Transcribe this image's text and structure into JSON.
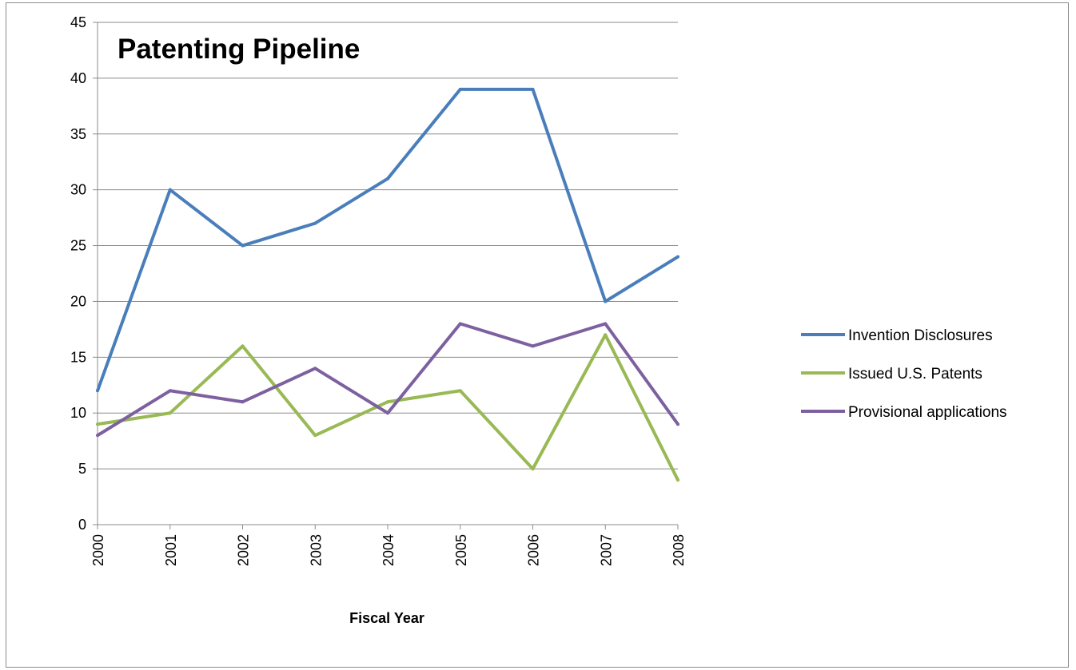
{
  "chart_data": {
    "type": "line",
    "title": "Patenting Pipeline",
    "xlabel": "Fiscal Year",
    "ylabel": "",
    "categories": [
      "2000",
      "2001",
      "2002",
      "2003",
      "2004",
      "2005",
      "2006",
      "2007",
      "2008"
    ],
    "ylim": [
      0,
      45
    ],
    "yticks": [
      0,
      5,
      10,
      15,
      20,
      25,
      30,
      35,
      40,
      45
    ],
    "grid": true,
    "legend_position": "right",
    "series": [
      {
        "name": "Invention Disclosures",
        "color": "#4a7ebb",
        "values": [
          12,
          30,
          25,
          27,
          31,
          39,
          39,
          20,
          24
        ]
      },
      {
        "name": "Issued U.S. Patents",
        "color": "#98b954",
        "values": [
          9,
          10,
          16,
          8,
          11,
          12,
          5,
          17,
          4
        ]
      },
      {
        "name": "Provisional applications",
        "color": "#7d60a0",
        "values": [
          8,
          12,
          11,
          14,
          10,
          18,
          16,
          18,
          9
        ]
      }
    ]
  }
}
